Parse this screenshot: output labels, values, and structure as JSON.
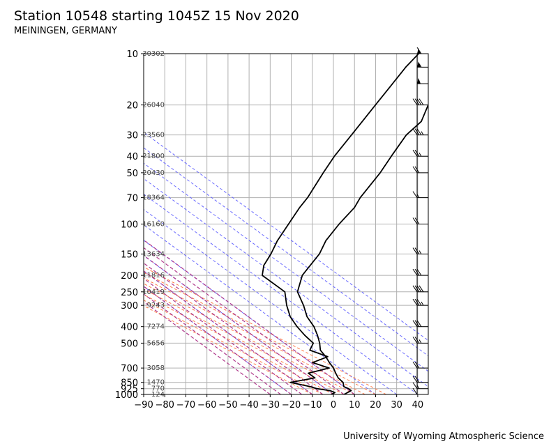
{
  "header": {
    "title": "Station 10548 starting 1045Z 15 Nov 2020",
    "subtitle": "MEININGEN, GERMANY"
  },
  "footer": {
    "credit": "University of Wyoming Atmospheric Science"
  },
  "colors": {
    "grid": "#b0b0b0",
    "dry_adiabat": "#6a6aff",
    "moist_adiabat": "#ff7a45",
    "mixing_ratio": "#b03a8c",
    "profile": "#000000"
  },
  "chart_data": {
    "type": "line",
    "chart_kind": "Skew-T log-P sounding",
    "title": "Station 10548 starting 1045Z 15 Nov 2020",
    "subtitle": "MEININGEN, GERMANY",
    "xlim": [
      -90,
      45
    ],
    "ylim": [
      1000,
      10
    ],
    "yscale": "log",
    "grid": true,
    "x_ticks": [
      -90,
      -80,
      -70,
      -60,
      -50,
      -40,
      -30,
      -20,
      -10,
      0,
      10,
      20,
      30,
      40
    ],
    "x_tick_labels": [
      "−90",
      "−80",
      "−70",
      "−60",
      "−50",
      "−40",
      "−30",
      "−20",
      "−10",
      "0",
      "10",
      "20",
      "30",
      "40"
    ],
    "y_ticks": [
      10,
      20,
      30,
      40,
      50,
      70,
      100,
      150,
      200,
      250,
      300,
      400,
      500,
      700,
      850,
      925,
      1000
    ],
    "y_tick_labels": [
      "10",
      "20",
      "30",
      "40",
      "50",
      "70",
      "100",
      "150",
      "200",
      "250",
      "300",
      "400",
      "500",
      "700",
      "850",
      "925",
      "1000"
    ],
    "height_labels": [
      {
        "p": 10,
        "text": "30302"
      },
      {
        "p": 20,
        "text": "26040"
      },
      {
        "p": 30,
        "text": "23560"
      },
      {
        "p": 40,
        "text": "21800"
      },
      {
        "p": 50,
        "text": "20430"
      },
      {
        "p": 70,
        "text": "18364"
      },
      {
        "p": 100,
        "text": "16160"
      },
      {
        "p": 150,
        "text": "13634"
      },
      {
        "p": 200,
        "text": "11816"
      },
      {
        "p": 250,
        "text": "10419"
      },
      {
        "p": 300,
        "text": "9243"
      },
      {
        "p": 400,
        "text": "7274"
      },
      {
        "p": 500,
        "text": "5656"
      },
      {
        "p": 700,
        "text": "3058"
      },
      {
        "p": 850,
        "text": "1470"
      },
      {
        "p": 925,
        "text": "770"
      },
      {
        "p": 1000,
        "text": "124"
      }
    ],
    "series": [
      {
        "name": "Temperature",
        "p": [
          1000,
          975,
          950,
          925,
          900,
          850,
          800,
          750,
          700,
          650,
          600,
          550,
          500,
          450,
          400,
          350,
          300,
          250,
          200,
          175,
          150,
          125,
          100,
          80,
          70,
          50,
          40,
          30,
          25,
          20,
          15,
          12,
          10
        ],
        "t": [
          5,
          6,
          7,
          5,
          2,
          0,
          -4,
          -7,
          -10,
          -14,
          -18,
          -23,
          -26,
          -30,
          -35,
          -42,
          -48,
          -56,
          -60,
          -60,
          -60,
          -62,
          -62,
          -61,
          -62,
          -62,
          -63,
          -64,
          -62,
          -65,
          -65,
          -64,
          -60
        ]
      },
      {
        "name": "Dewpoint",
        "p": [
          1000,
          975,
          950,
          925,
          900,
          850,
          800,
          750,
          700,
          650,
          600,
          550,
          500,
          450,
          400,
          350,
          300,
          250,
          200,
          175,
          150,
          125,
          100,
          80,
          70,
          50,
          40,
          30,
          25,
          20,
          15,
          12,
          10
        ],
        "t": [
          -1,
          0,
          -3,
          -10,
          -14,
          -25,
          -15,
          -20,
          -12,
          -22,
          -17,
          -28,
          -29,
          -36,
          -43,
          -50,
          -56,
          -62,
          -79,
          -82,
          -83,
          -85,
          -86,
          -87,
          -87,
          -89,
          -90,
          -90,
          -90,
          -90,
          -90,
          -90,
          -89
        ]
      }
    ],
    "wind_barbs": [
      {
        "p": 1000,
        "speed_kt": 10
      },
      {
        "p": 925,
        "speed_kt": 15
      },
      {
        "p": 850,
        "speed_kt": 20
      },
      {
        "p": 700,
        "speed_kt": 20
      },
      {
        "p": 500,
        "speed_kt": 25
      },
      {
        "p": 400,
        "speed_kt": 30
      },
      {
        "p": 300,
        "speed_kt": 35
      },
      {
        "p": 250,
        "speed_kt": 40
      },
      {
        "p": 200,
        "speed_kt": 30
      },
      {
        "p": 150,
        "speed_kt": 25
      },
      {
        "p": 100,
        "speed_kt": 20
      },
      {
        "p": 70,
        "speed_kt": 15
      },
      {
        "p": 50,
        "speed_kt": 20
      },
      {
        "p": 40,
        "speed_kt": 25
      },
      {
        "p": 30,
        "speed_kt": 35
      },
      {
        "p": 20,
        "speed_kt": 40
      },
      {
        "p": 15,
        "speed_kt": 50
      },
      {
        "p": 12,
        "speed_kt": 55
      },
      {
        "p": 10,
        "speed_kt": 60
      }
    ]
  }
}
